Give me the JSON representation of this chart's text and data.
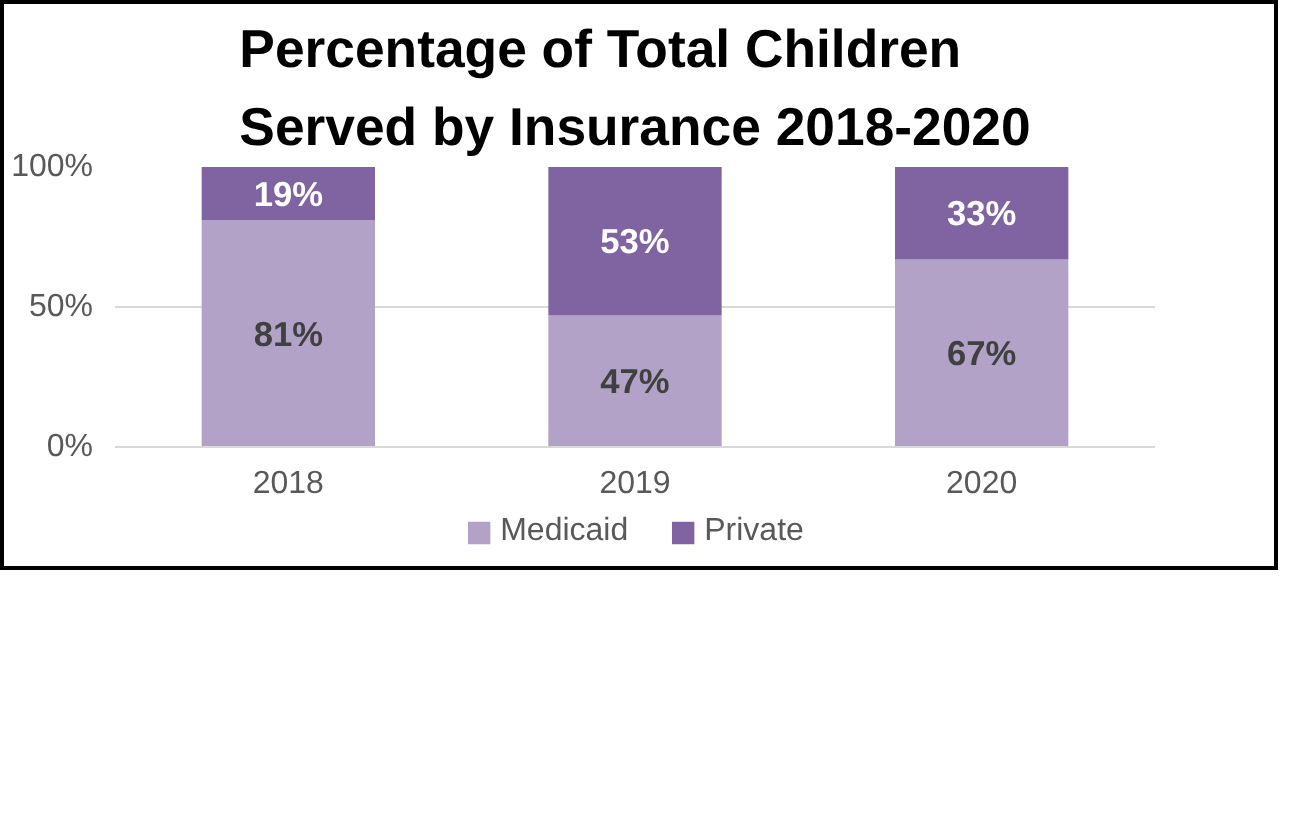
{
  "chart_data": {
    "type": "bar",
    "title": "Percentage of Total Children Served by Insurance 2018-2020",
    "categories": [
      "2018",
      "2019",
      "2020"
    ],
    "stacked": true,
    "series": [
      {
        "name": "Medicaid",
        "color": "#b3a2c7",
        "values": [
          81,
          47,
          67
        ],
        "value_labels": [
          "81%",
          "47%",
          "67%"
        ]
      },
      {
        "name": "Private",
        "color": "#8064a2",
        "values": [
          19,
          53,
          33
        ],
        "value_labels": [
          "19%",
          "53%",
          "33%"
        ]
      }
    ],
    "ylim": [
      0,
      100
    ],
    "yticks": [
      {
        "value": 0,
        "label": "0%"
      },
      {
        "value": 50,
        "label": "50%"
      },
      {
        "value": 100,
        "label": "100%"
      }
    ],
    "grid": "y",
    "legend": "bottom"
  }
}
